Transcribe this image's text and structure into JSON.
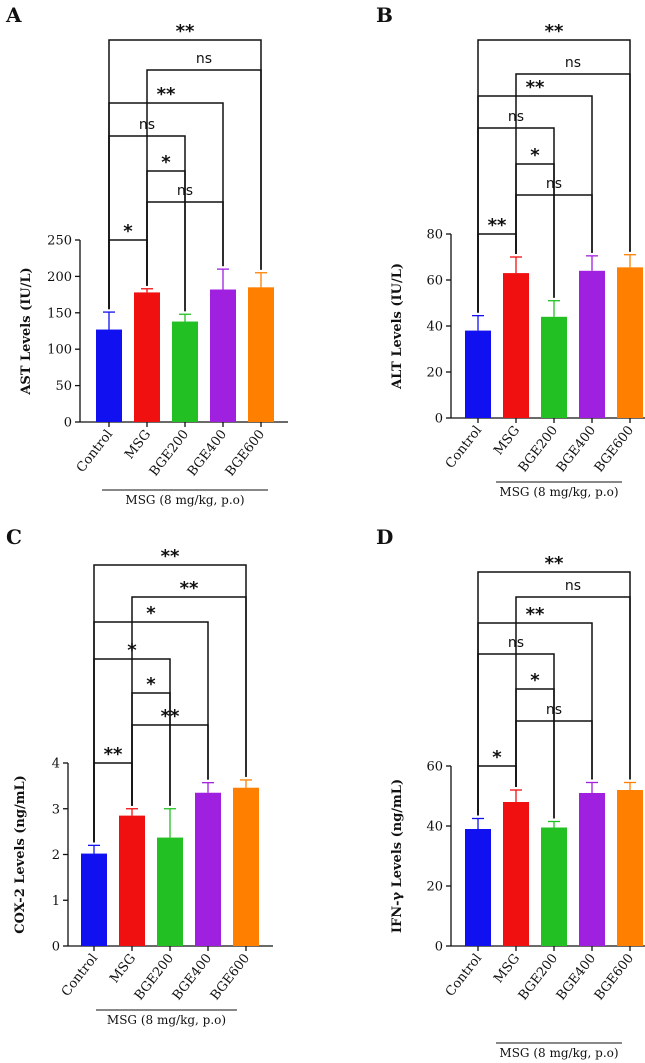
{
  "chart_data": [
    {
      "panel": "A",
      "type": "bar",
      "ylabel": "AST Levels (IU/L)",
      "ylim": [
        0,
        250
      ],
      "yticks": [
        0,
        50,
        100,
        150,
        200,
        250
      ],
      "categories": [
        "Control",
        "MSG",
        "BGE200",
        "BGE400",
        "BGE600"
      ],
      "values": [
        127,
        178,
        138,
        182,
        185
      ],
      "errors": [
        24,
        5,
        10,
        28,
        20
      ],
      "colors": [
        "#1010f0",
        "#f01010",
        "#22c022",
        "#a020e0",
        "#ff8000"
      ],
      "group_label": "MSG (8 mg/kg, p.o)",
      "comparisons": [
        {
          "a": 0,
          "b": 1,
          "label": "*"
        },
        {
          "a": 1,
          "b": 3,
          "label": "ns"
        },
        {
          "a": 1,
          "b": 2,
          "label": "*"
        },
        {
          "a": 0,
          "b": 2,
          "label": "ns"
        },
        {
          "a": 0,
          "b": 3,
          "label": "**"
        },
        {
          "a": 1,
          "b": 4,
          "label": "ns"
        },
        {
          "a": 0,
          "b": 4,
          "label": "**"
        }
      ]
    },
    {
      "panel": "B",
      "type": "bar",
      "ylabel": "ALT Levels (IU/L)",
      "ylim": [
        0,
        80
      ],
      "yticks": [
        0,
        20,
        40,
        60,
        80
      ],
      "categories": [
        "Control",
        "MSG",
        "BGE200",
        "BGE400",
        "BGE600"
      ],
      "values": [
        38,
        63,
        44,
        64,
        65.5
      ],
      "errors": [
        6.5,
        7,
        7,
        6.5,
        5.5
      ],
      "colors": [
        "#1010f0",
        "#f01010",
        "#22c022",
        "#a020e0",
        "#ff8000"
      ],
      "group_label": "MSG (8 mg/kg, p.o)",
      "comparisons": [
        {
          "a": 0,
          "b": 1,
          "label": "**"
        },
        {
          "a": 1,
          "b": 3,
          "label": "ns"
        },
        {
          "a": 1,
          "b": 2,
          "label": "*"
        },
        {
          "a": 0,
          "b": 2,
          "label": "ns"
        },
        {
          "a": 0,
          "b": 3,
          "label": "**"
        },
        {
          "a": 1,
          "b": 4,
          "label": "ns"
        },
        {
          "a": 0,
          "b": 4,
          "label": "**"
        }
      ]
    },
    {
      "panel": "C",
      "type": "bar",
      "ylabel": "COX-2 Levels (ng/mL)",
      "ylim": [
        0,
        4
      ],
      "yticks": [
        0,
        1,
        2,
        3,
        4
      ],
      "categories": [
        "Control",
        "MSG",
        "BGE200",
        "BGE400",
        "BGE600"
      ],
      "values": [
        2.02,
        2.85,
        2.37,
        3.35,
        3.46
      ],
      "errors": [
        0.18,
        0.15,
        0.63,
        0.22,
        0.17
      ],
      "colors": [
        "#1010f0",
        "#f01010",
        "#22c022",
        "#a020e0",
        "#ff8000"
      ],
      "group_label": "MSG (8 mg/kg, p.o)",
      "comparisons": [
        {
          "a": 0,
          "b": 1,
          "label": "**"
        },
        {
          "a": 1,
          "b": 3,
          "label": "**"
        },
        {
          "a": 1,
          "b": 2,
          "label": "*"
        },
        {
          "a": 0,
          "b": 2,
          "label": "*"
        },
        {
          "a": 0,
          "b": 3,
          "label": "*"
        },
        {
          "a": 1,
          "b": 4,
          "label": "**"
        },
        {
          "a": 0,
          "b": 4,
          "label": "**"
        }
      ]
    },
    {
      "panel": "D",
      "type": "bar",
      "ylabel": "IFN-γ Levels (ng/mL)",
      "ylim": [
        0,
        60
      ],
      "yticks": [
        0,
        20,
        40,
        60
      ],
      "categories": [
        "Control",
        "MSG",
        "BGE200",
        "BGE400",
        "BGE600"
      ],
      "values": [
        39,
        48,
        39.5,
        51,
        52
      ],
      "errors": [
        3.5,
        4,
        2,
        3.5,
        2.5
      ],
      "colors": [
        "#1010f0",
        "#f01010",
        "#22c022",
        "#a020e0",
        "#ff8000"
      ],
      "group_label": "MSG (8 mg/kg, p.o)",
      "comparisons": [
        {
          "a": 0,
          "b": 1,
          "label": "*"
        },
        {
          "a": 1,
          "b": 3,
          "label": "ns"
        },
        {
          "a": 1,
          "b": 2,
          "label": "*"
        },
        {
          "a": 0,
          "b": 2,
          "label": "ns"
        },
        {
          "a": 0,
          "b": 3,
          "label": "**"
        },
        {
          "a": 1,
          "b": 4,
          "label": "ns"
        },
        {
          "a": 0,
          "b": 4,
          "label": "**"
        }
      ]
    }
  ]
}
